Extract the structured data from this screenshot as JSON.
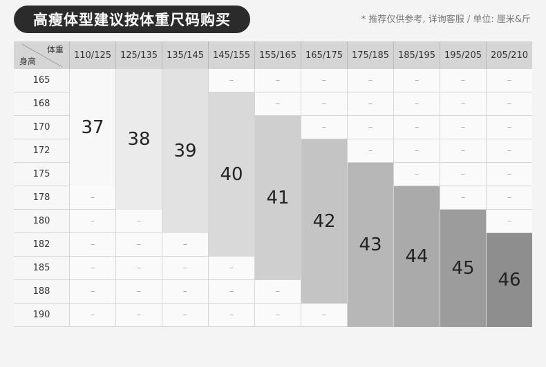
{
  "title": "高瘦体型建议按体重尺码购买",
  "note": "* 推荐仅供参考, 详询客服 / 单位: 厘米&斤",
  "table": {
    "corner_weight": "体重",
    "corner_height": "身高",
    "weights": [
      "110/125",
      "125/135",
      "135/145",
      "145/155",
      "155/165",
      "165/175",
      "175/185",
      "185/195",
      "195/205",
      "205/210"
    ],
    "heights": [
      "165",
      "168",
      "170",
      "172",
      "175",
      "178",
      "180",
      "182",
      "185",
      "188",
      "190"
    ],
    "empty_mark": "–",
    "sizes": [
      {
        "size": "37",
        "weight": "110/125",
        "from": "165",
        "to": "175",
        "color": "#f8f8f8"
      },
      {
        "size": "38",
        "weight": "125/135",
        "from": "165",
        "to": "178",
        "color": "#ebebeb"
      },
      {
        "size": "39",
        "weight": "135/145",
        "from": "165",
        "to": "180",
        "color": "#e2e2e2"
      },
      {
        "size": "40",
        "weight": "145/155",
        "from": "168",
        "to": "182",
        "color": "#d9d9d9"
      },
      {
        "size": "41",
        "weight": "155/165",
        "from": "170",
        "to": "185",
        "color": "#cfcfcf"
      },
      {
        "size": "42",
        "weight": "165/175",
        "from": "172",
        "to": "188",
        "color": "#c4c4c4"
      },
      {
        "size": "43",
        "weight": "175/185",
        "from": "175",
        "to": "190",
        "color": "#b7b7b7"
      },
      {
        "size": "44",
        "weight": "185/195",
        "from": "178",
        "to": "190",
        "color": "#aaaaaa"
      },
      {
        "size": "45",
        "weight": "195/205",
        "from": "180",
        "to": "190",
        "color": "#9c9c9c"
      },
      {
        "size": "46",
        "weight": "205/210",
        "from": "182",
        "to": "190",
        "color": "#8e8e8e"
      }
    ]
  }
}
